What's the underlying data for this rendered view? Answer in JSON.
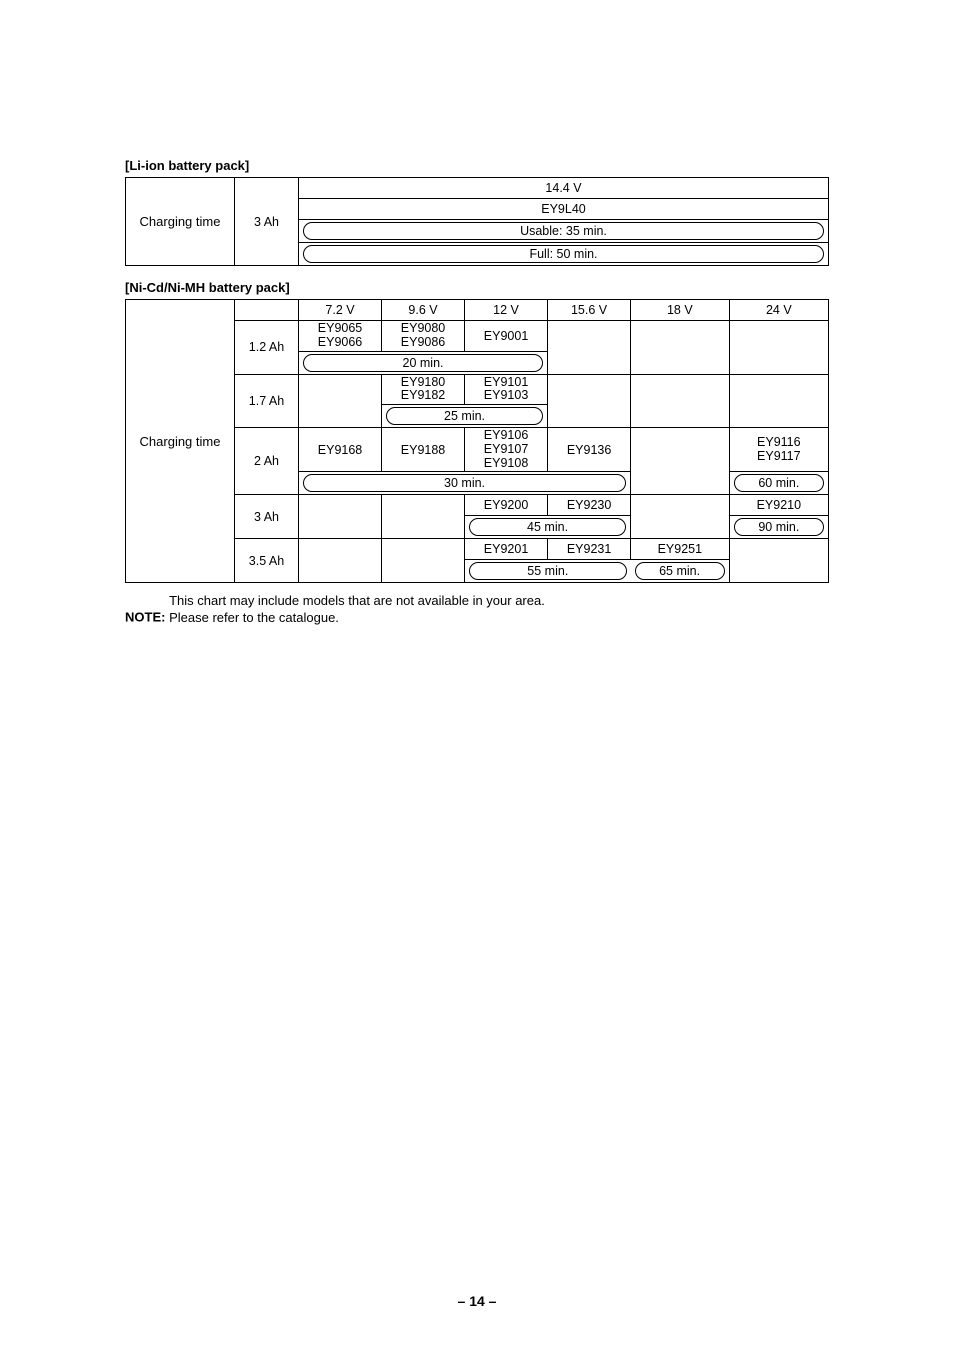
{
  "liion": {
    "title": "[Li-ion battery pack]",
    "charging_label": "Charging time",
    "capacity": "3 Ah",
    "voltage": "14.4 V",
    "model": "EY9L40",
    "usable": "Usable: 35 min.",
    "full": "Full: 50 min."
  },
  "nicd": {
    "title": "[Ni-Cd/Ni-MH battery pack]",
    "charging_label": "Charging time",
    "headers": {
      "v72": "7.2 V",
      "v96": "9.6 V",
      "v12": "12 V",
      "v156": "15.6 V",
      "v18": "18 V",
      "v24": "24 V"
    },
    "r12": {
      "cap": "1.2 Ah",
      "c72": "EY9065\nEY9066",
      "c96": "EY9080\nEY9086",
      "c12": "EY9001",
      "time": "20 min."
    },
    "r17": {
      "cap": "1.7 Ah",
      "c96": "EY9180\nEY9182",
      "c12": "EY9101\nEY9103",
      "time": "25 min."
    },
    "r2": {
      "cap": "2 Ah",
      "c72": "EY9168",
      "c96": "EY9188",
      "c12": "EY9106\nEY9107\nEY9108",
      "c156": "EY9136",
      "c24": "EY9116\nEY9117",
      "time": "30 min.",
      "time24": "60 min."
    },
    "r3": {
      "cap": "3 Ah",
      "c12": "EY9200",
      "c156": "EY9230",
      "c24": "EY9210",
      "time": "45 min.",
      "time24": "90 min."
    },
    "r35": {
      "cap": "3.5 Ah",
      "c12": "EY9201",
      "c156": "EY9231",
      "c18": "EY9251",
      "time": "55 min.",
      "time18": "65 min."
    }
  },
  "note": {
    "label": "NOTE:",
    "line1": "This chart may include models that are not available in your area.",
    "line2": "Please refer to the catalogue."
  },
  "pagenum": "– 14 –"
}
